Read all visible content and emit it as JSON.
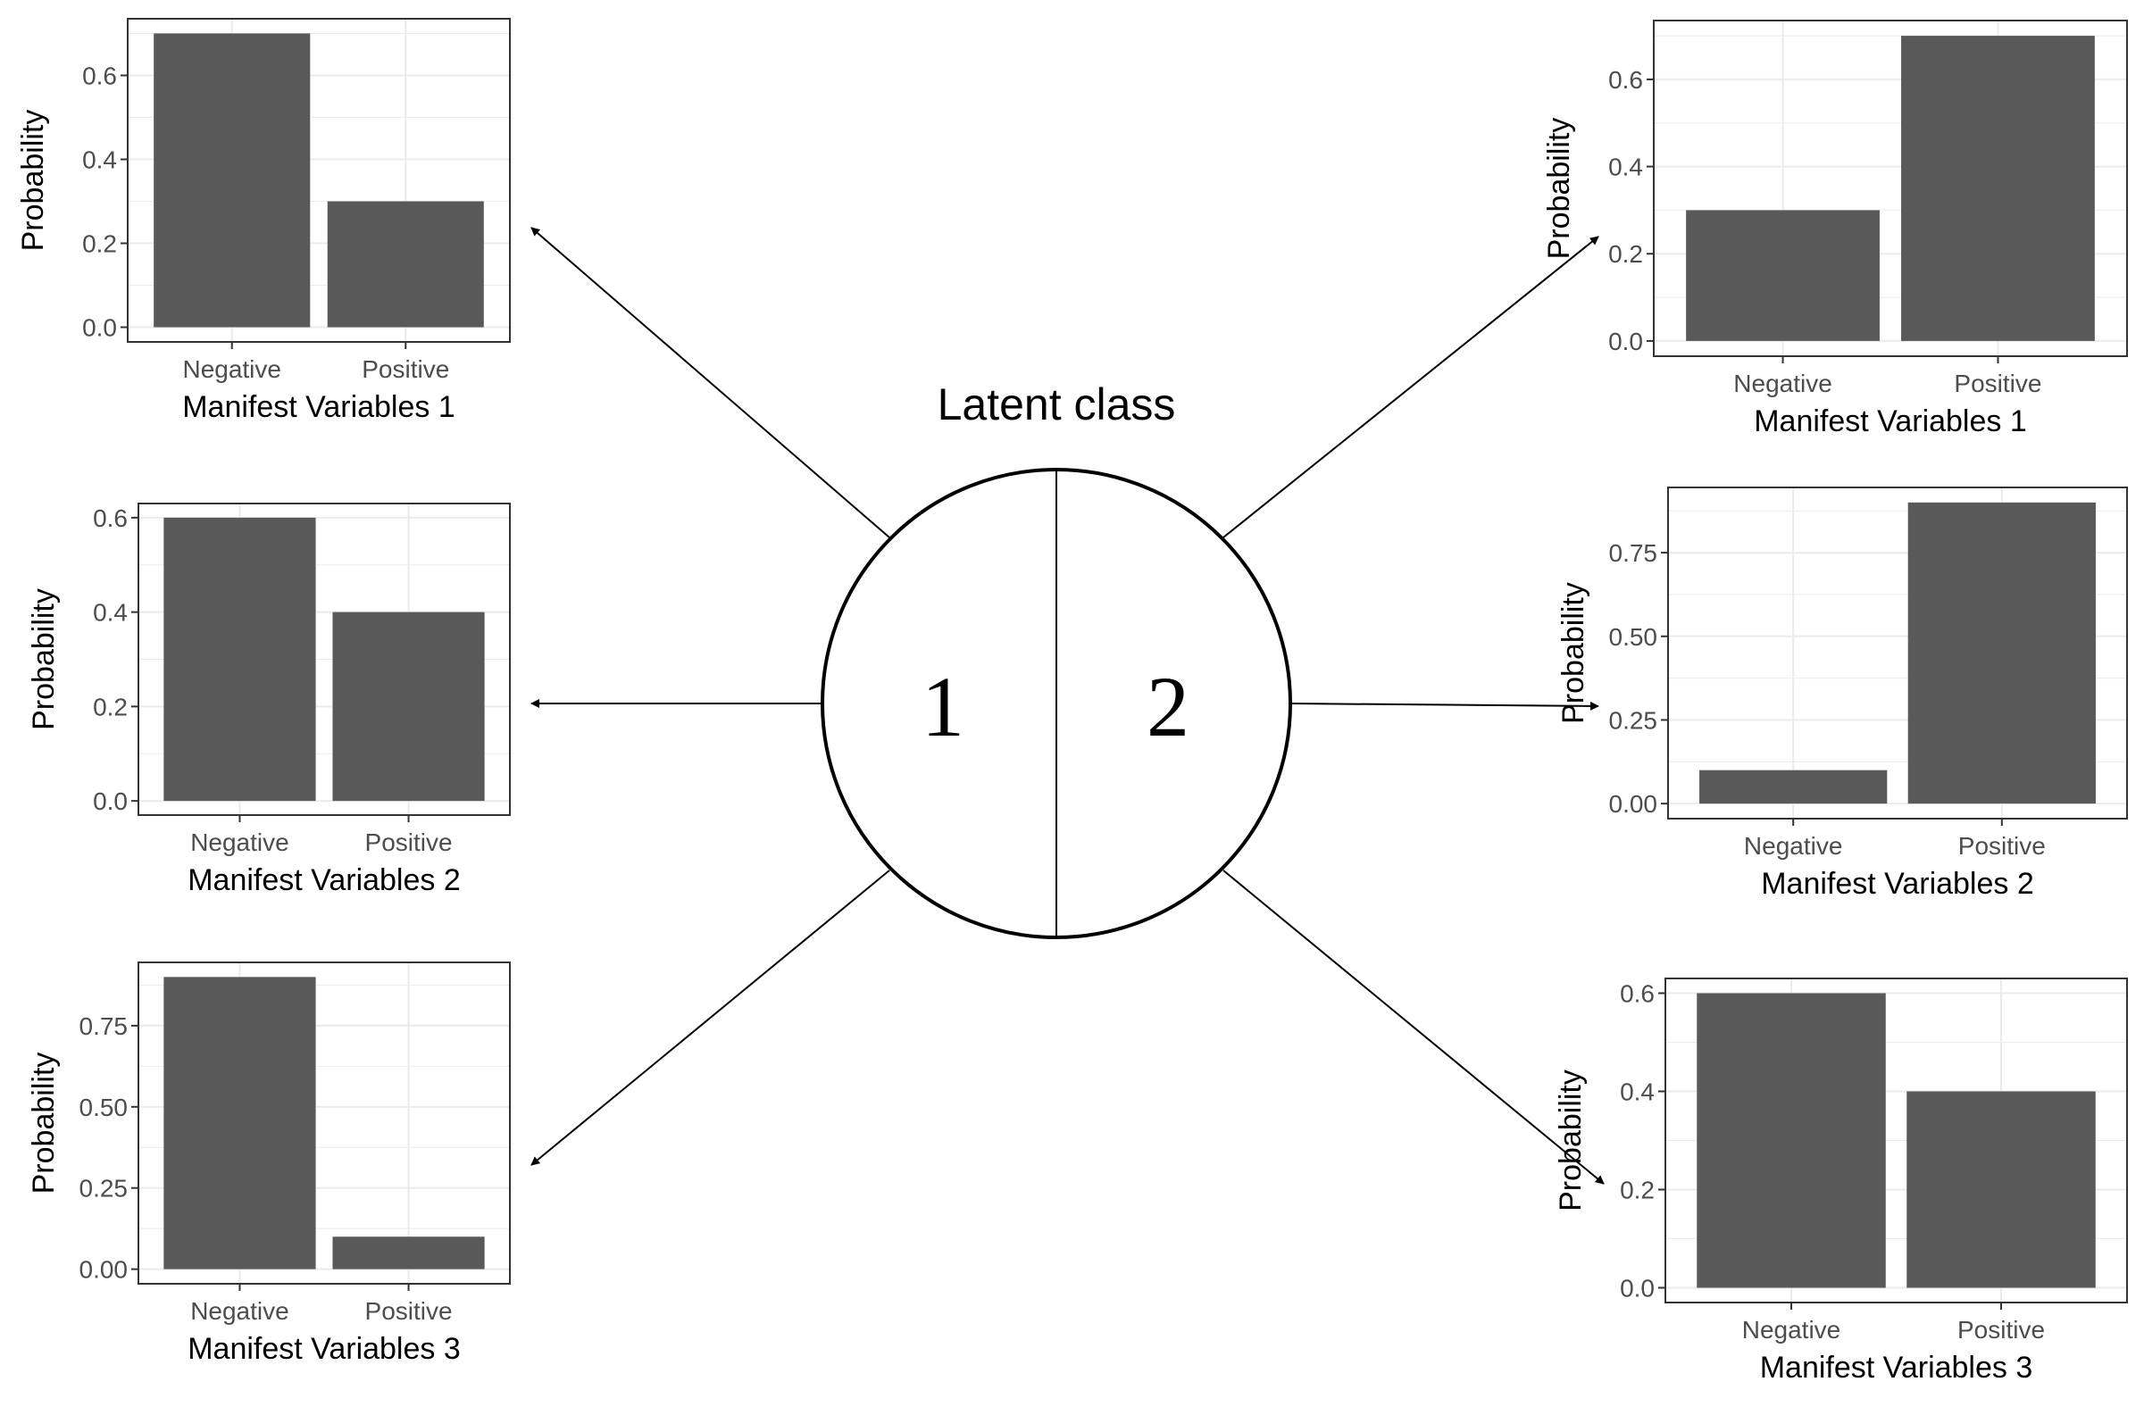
{
  "diagram": {
    "title": "Latent class",
    "classes": [
      "1",
      "2"
    ]
  },
  "colors": {
    "bar": "#595959",
    "grid": "#ebebeb",
    "panel_border": "#333333",
    "arrow": "#000000"
  },
  "chart_data": [
    {
      "type": "bar",
      "latent_class": "1",
      "categories": [
        "Negative",
        "Positive"
      ],
      "values": [
        0.7,
        0.3
      ],
      "xlabel": "Manifest Variables 1",
      "ylabel": "Probability",
      "ylim": [
        0,
        0.7
      ],
      "yticks": [
        0.0,
        0.2,
        0.4,
        0.6
      ],
      "ytick_labels": [
        "0.0",
        "0.2",
        "0.4",
        "0.6"
      ],
      "grid": true
    },
    {
      "type": "bar",
      "latent_class": "1",
      "categories": [
        "Negative",
        "Positive"
      ],
      "values": [
        0.6,
        0.4
      ],
      "xlabel": "Manifest Variables 2",
      "ylabel": "Probability",
      "ylim": [
        0,
        0.6
      ],
      "yticks": [
        0.0,
        0.2,
        0.4,
        0.6
      ],
      "ytick_labels": [
        "0.0",
        "0.2",
        "0.4",
        "0.6"
      ],
      "grid": true
    },
    {
      "type": "bar",
      "latent_class": "1",
      "categories": [
        "Negative",
        "Positive"
      ],
      "values": [
        0.9,
        0.1
      ],
      "xlabel": "Manifest Variables 3",
      "ylabel": "Probability",
      "ylim": [
        0,
        0.9
      ],
      "yticks": [
        0.0,
        0.25,
        0.5,
        0.75
      ],
      "ytick_labels": [
        "0.00",
        "0.25",
        "0.50",
        "0.75"
      ],
      "grid": true
    },
    {
      "type": "bar",
      "latent_class": "2",
      "categories": [
        "Negative",
        "Positive"
      ],
      "values": [
        0.3,
        0.7
      ],
      "xlabel": "Manifest Variables 1",
      "ylabel": "Probability",
      "ylim": [
        0,
        0.7
      ],
      "yticks": [
        0.0,
        0.2,
        0.4,
        0.6
      ],
      "ytick_labels": [
        "0.0",
        "0.2",
        "0.4",
        "0.6"
      ],
      "grid": true
    },
    {
      "type": "bar",
      "latent_class": "2",
      "categories": [
        "Negative",
        "Positive"
      ],
      "values": [
        0.1,
        0.9
      ],
      "xlabel": "Manifest Variables 2",
      "ylabel": "Probability",
      "ylim": [
        0,
        0.9
      ],
      "yticks": [
        0.0,
        0.25,
        0.5,
        0.75
      ],
      "ytick_labels": [
        "0.00",
        "0.25",
        "0.50",
        "0.75"
      ],
      "grid": true
    },
    {
      "type": "bar",
      "latent_class": "2",
      "categories": [
        "Negative",
        "Positive"
      ],
      "values": [
        0.6,
        0.4
      ],
      "xlabel": "Manifest Variables 3",
      "ylabel": "Probability",
      "ylim": [
        0,
        0.6
      ],
      "yticks": [
        0.0,
        0.2,
        0.4,
        0.6
      ],
      "ytick_labels": [
        "0.0",
        "0.2",
        "0.4",
        "0.6"
      ],
      "grid": true
    }
  ]
}
